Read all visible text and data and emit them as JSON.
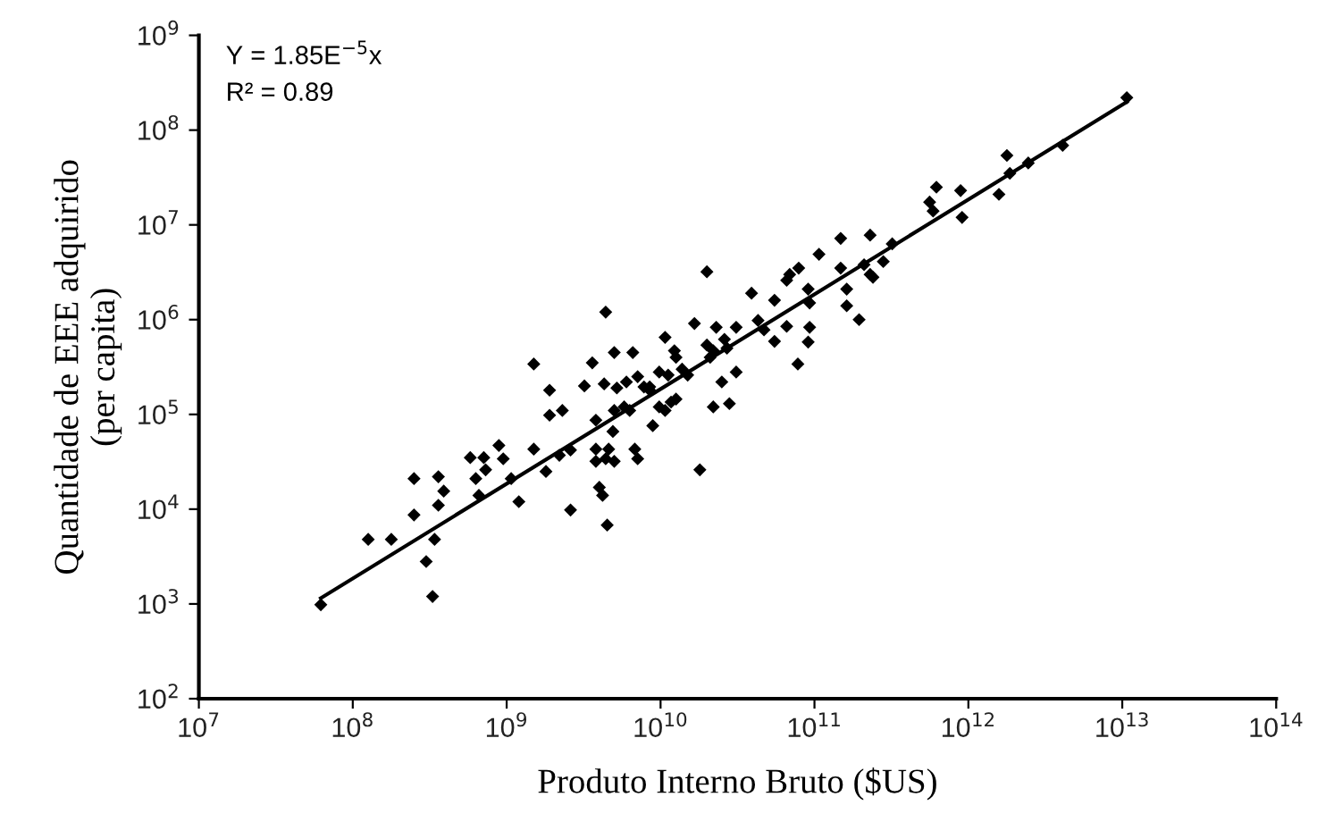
{
  "chart_data": {
    "type": "scatter",
    "xlabel": "Produto Interno Bruto ($US)",
    "ylabel": "Quantidade de EEE adquirido\n(per capita)",
    "annotations": [
      "Y = 1.85E$^{−5}$x",
      "R² = 0.89"
    ],
    "log": "xy",
    "grid": false,
    "xlim": [
      10000000.0,
      100000000000000.0
    ],
    "ylim": [
      100.0,
      1000000000.0
    ],
    "xticks": [
      {
        "value": 10000000.0,
        "label": "10$^{7}$"
      },
      {
        "value": 100000000.0,
        "label": "10$^{8}$"
      },
      {
        "value": 1000000000.0,
        "label": "10$^{9}$"
      },
      {
        "value": 10000000000.0,
        "label": "10$^{10}$"
      },
      {
        "value": 100000000000.0,
        "label": "10$^{11}$"
      },
      {
        "value": 1000000000000.0,
        "label": "10$^{12}$"
      },
      {
        "value": 10000000000000.0,
        "label": "10$^{13}$"
      },
      {
        "value": 100000000000000.0,
        "label": "10$^{14}$"
      }
    ],
    "yticks": [
      {
        "value": 100.0,
        "label": "10$^{2}$"
      },
      {
        "value": 1000.0,
        "label": "10$^{3}$"
      },
      {
        "value": 10000.0,
        "label": "10$^{4}$"
      },
      {
        "value": 100000.0,
        "label": "10$^{5}$"
      },
      {
        "value": 1000000.0,
        "label": "10$^{6}$"
      },
      {
        "value": 10000000.0,
        "label": "10$^{7}$"
      },
      {
        "value": 100000000.0,
        "label": "10$^{8}$"
      },
      {
        "value": 1000000000.0,
        "label": "10$^{9}$"
      }
    ],
    "series": [
      {
        "color": "#000000",
        "marker": "diamond",
        "x": [
          62000000.0,
          126000000.0,
          178000000.0,
          250000000.0,
          250000000.0,
          300000000.0,
          330000000.0,
          340000000.0,
          360000000.0,
          360000000.0,
          390000000.0,
          580000000.0,
          630000000.0,
          660000000.0,
          710000000.0,
          730000000.0,
          890000000.0,
          950000000.0,
          1070000000.0,
          1200000000.0,
          1500000000.0,
          1500000000.0,
          1800000000.0,
          1900000000.0,
          1900000000.0,
          2300000000.0,
          2600000000.0,
          2200000000.0,
          2600000000.0,
          3600000000.0,
          3200000000.0,
          4400000000.0,
          5000000000.0,
          6600000000.0,
          4300000000.0,
          5200000000.0,
          6000000000.0,
          7100000000.0,
          7800000000.0,
          8500000000.0,
          5000000000.0,
          5800000000.0,
          6300000000.0,
          3800000000.0,
          4900000000.0,
          3800000000.0,
          4600000000.0,
          4400000000.0,
          5000000000.0,
          3800000000.0,
          6800000000.0,
          7100000000.0,
          4000000000.0,
          4200000000.0,
          4500000000.0,
          8900000000.0,
          8500000000.0,
          9800000000.0,
          10700000000.0,
          11700000000.0,
          12600000000.0,
          10700000000.0,
          12300000000.0,
          12600000000.0,
          9800000000.0,
          11200000000.0,
          13800000000.0,
          15000000000.0,
          16600000000.0,
          20000000000.0,
          22000000000.0,
          21000000000.0,
          20000000000.0,
          22000000000.0,
          28000000000.0,
          18000000000.0,
          25000000000.0,
          31000000000.0,
          23000000000.0,
          26000000000.0,
          31000000000.0,
          27000000000.0,
          39000000000.0,
          43000000000.0,
          47000000000.0,
          55000000000.0,
          55000000000.0,
          66000000000.0,
          66000000000.0,
          69000000000.0,
          79000000000.0,
          78000000000.0,
          91000000000.0,
          93000000000.0,
          93000000000.0,
          91000000000.0,
          107000000000.0,
          148000000000.0,
          148000000000.0,
          162000000000.0,
          195000000000.0,
          230000000000.0,
          230000000000.0,
          320000000000.0,
          162000000000.0,
          210000000000.0,
          240000000000.0,
          280000000000.0,
          560000000000.0,
          620000000000.0,
          590000000000.0,
          910000000000.0,
          890000000000.0,
          1580000000000.0,
          1780000000000.0,
          1860000000000.0,
          2450000000000.0,
          4100000000000.0,
          10700000000000.0
        ],
        "values": [
          980,
          4800,
          4800,
          21000.0,
          8700,
          2800,
          1200,
          4800,
          22000.0,
          11000.0,
          15500.0,
          35000.0,
          21000.0,
          14000.0,
          35000.0,
          26000.0,
          47000.0,
          34000.0,
          21000.0,
          12000.0,
          43000.0,
          340000.0,
          25000.0,
          180000.0,
          98000.0,
          110000.0,
          9800,
          37000.0,
          42000.0,
          350000.0,
          200000.0,
          1200000.0,
          450000.0,
          450000.0,
          210000.0,
          190000.0,
          220000.0,
          250000.0,
          195000.0,
          195000.0,
          110000.0,
          120000.0,
          110000.0,
          87000.0,
          66000.0,
          43000.0,
          43000.0,
          34000.0,
          32000.0,
          32000.0,
          43000.0,
          34000.0,
          17000.0,
          14000.0,
          6800,
          76000.0,
          180000.0,
          120000.0,
          110000.0,
          135000.0,
          145000.0,
          650000.0,
          470000.0,
          400000.0,
          280000.0,
          260000.0,
          300000.0,
          260000.0,
          910000.0,
          540000.0,
          470000.0,
          400000.0,
          3200000.0,
          120000.0,
          130000.0,
          26000.0,
          220000.0,
          280000.0,
          830000.0,
          620000.0,
          830000.0,
          500000.0,
          1900000.0,
          980000.0,
          780000.0,
          590000.0,
          1600000.0,
          850000.0,
          2600000.0,
          3000000.0,
          3500000.0,
          340000.0,
          580000.0,
          830000.0,
          1500000.0,
          2100000.0,
          4900000.0,
          7200000.0,
          3500000.0,
          2100000.0,
          1000000.0,
          7800000.0,
          3000000.0,
          6300000.0,
          1400000.0,
          3800000.0,
          2800000.0,
          4100000.0,
          17400000.0,
          25000000.0,
          14000000.0,
          12000000.0,
          23000000.0,
          21000000.0,
          54000000.0,
          35000000.0,
          45000000.0,
          69000000.0,
          220000000.0
        ]
      },
      {
        "type": "line",
        "color": "#000000",
        "marker": "none",
        "line_style": "solid",
        "x": [
          62000000.0,
          10700000000000.0
        ],
        "values": [
          1150,
          198000000.0
        ]
      }
    ]
  }
}
